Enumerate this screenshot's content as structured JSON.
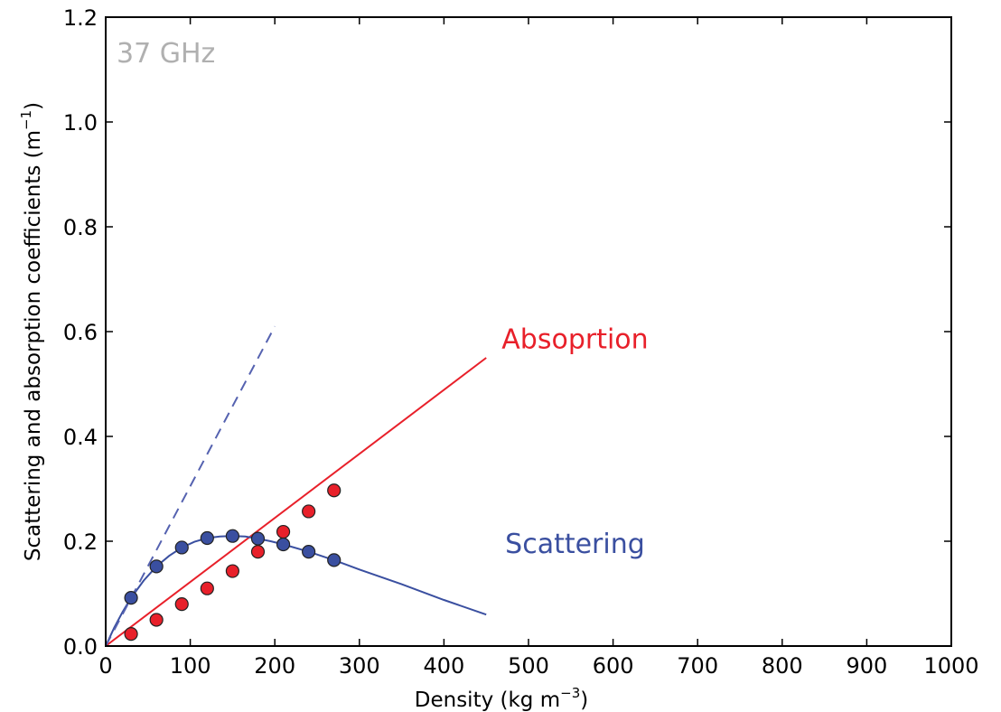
{
  "chart_data": {
    "type": "line",
    "title": "",
    "xlabel_main": "Density (kg m",
    "xlabel_sup": "−3",
    "xlabel_close": ")",
    "ylabel_main": "Scattering and absorption coefficients (m",
    "ylabel_sup": "−1",
    "ylabel_close": ")",
    "xlim": [
      0,
      1000
    ],
    "ylim": [
      0,
      1.2
    ],
    "x_ticks": [
      0,
      100,
      200,
      300,
      400,
      500,
      600,
      700,
      800,
      900,
      1000
    ],
    "x_tick_labels": [
      "0",
      "100",
      "200",
      "300",
      "400",
      "500",
      "600",
      "700",
      "800",
      "900",
      "1000"
    ],
    "y_ticks": [
      0,
      0.2,
      0.4,
      0.6,
      0.8,
      1.0,
      1.2
    ],
    "y_tick_labels": [
      "0.0",
      "0.2",
      "0.4",
      "0.6",
      "0.8",
      "1.0",
      "1.2"
    ],
    "grid": false,
    "frequency_label": "37 GHz",
    "series": [
      {
        "name": "Absoprtion",
        "color": "#e8202a",
        "line": {
          "x": [
            0,
            450
          ],
          "y": [
            0.0,
            0.55
          ]
        },
        "points": {
          "x": [
            30,
            60,
            90,
            120,
            150,
            180,
            210,
            240,
            270
          ],
          "y": [
            0.023,
            0.05,
            0.08,
            0.11,
            0.143,
            0.18,
            0.218,
            0.257,
            0.297
          ]
        }
      },
      {
        "name": "Scattering",
        "color": "#3a4fa0",
        "line": {
          "x": [
            0,
            10,
            20,
            30,
            45,
            60,
            75,
            90,
            105,
            120,
            135,
            150,
            165,
            180,
            195,
            210,
            240,
            270,
            300,
            350,
            400,
            450
          ],
          "y": [
            0.0,
            0.035,
            0.065,
            0.092,
            0.125,
            0.152,
            0.172,
            0.188,
            0.199,
            0.206,
            0.209,
            0.21,
            0.209,
            0.205,
            0.2,
            0.194,
            0.18,
            0.164,
            0.146,
            0.118,
            0.088,
            0.06
          ]
        },
        "points": {
          "x": [
            30,
            60,
            90,
            120,
            150,
            180,
            210,
            240,
            270
          ],
          "y": [
            0.092,
            0.152,
            0.188,
            0.206,
            0.21,
            0.205,
            0.194,
            0.18,
            0.164
          ]
        }
      },
      {
        "color": "#5562b0",
        "dashed": true,
        "line": {
          "x": [
            0,
            200
          ],
          "y": [
            0.0,
            0.61
          ]
        }
      }
    ],
    "annotations": [
      {
        "text": "Absoprtion",
        "x": 555,
        "y": 0.585,
        "color": "#e8202a"
      },
      {
        "text": "Scattering",
        "x": 555,
        "y": 0.195,
        "color": "#3a4fa0"
      }
    ]
  },
  "colors": {
    "frequency_label": "#b0b0b0",
    "axis": "#000000"
  }
}
